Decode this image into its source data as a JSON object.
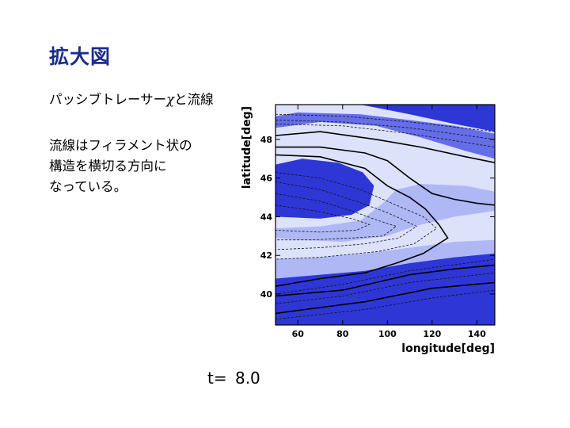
{
  "slide": {
    "title": "拡大図",
    "text_line1_prefix": "パッシブトレーサー",
    "text_line1_symbol": "χ",
    "text_line1_suffix": "と流線",
    "paragraph": [
      "流線はフィラメント状の",
      "構造を横切る方向に",
      "なっている。"
    ],
    "time_label": "t=",
    "time_value": "8.0"
  },
  "colors": {
    "title": "#1a2c8c",
    "band_dark": "#1e28d2",
    "band_mid": "#5a64e6",
    "band_light": "#aab4f4",
    "band_pale": "#dde2fb"
  },
  "chart_data": {
    "type": "contour",
    "title": "",
    "xlabel": "longitude[deg]",
    "ylabel": "latitude[deg]",
    "xlim": [
      50,
      148
    ],
    "ylim": [
      38.4,
      49.8
    ],
    "xticks": [
      60,
      80,
      100,
      120,
      140
    ],
    "yticks": [
      40,
      42,
      44,
      46,
      48
    ],
    "tracer_bands": [
      {
        "name": "top-dark",
        "level": "dark",
        "points": [
          [
            88,
            49.8
          ],
          [
            110,
            49.3
          ],
          [
            130,
            48.8
          ],
          [
            148,
            48.4
          ],
          [
            148,
            49.8
          ]
        ]
      },
      {
        "name": "upper-band",
        "level": "mid",
        "points": [
          [
            50,
            48.6
          ],
          [
            70,
            48.9
          ],
          [
            95,
            48.7
          ],
          [
            115,
            48.1
          ],
          [
            135,
            47.4
          ],
          [
            148,
            47.0
          ],
          [
            148,
            48.3
          ],
          [
            130,
            48.7
          ],
          [
            110,
            49.0
          ],
          [
            88,
            49.3
          ],
          [
            60,
            49.4
          ],
          [
            50,
            49.2
          ]
        ]
      },
      {
        "name": "filament",
        "level": "dark",
        "points": [
          [
            50,
            44.0
          ],
          [
            50,
            46.7
          ],
          [
            62,
            47.0
          ],
          [
            78,
            46.8
          ],
          [
            89,
            46.3
          ],
          [
            94,
            45.6
          ],
          [
            92,
            44.6
          ],
          [
            84,
            44.1
          ],
          [
            70,
            43.9
          ]
        ]
      },
      {
        "name": "filament-halo",
        "level": "light",
        "points": [
          [
            50,
            43.4
          ],
          [
            70,
            43.5
          ],
          [
            88,
            43.8
          ],
          [
            98,
            44.7
          ],
          [
            104,
            45.4
          ],
          [
            115,
            45.7
          ],
          [
            135,
            45.6
          ],
          [
            148,
            45.3
          ],
          [
            148,
            44.3
          ],
          [
            130,
            44.0
          ],
          [
            112,
            43.5
          ],
          [
            100,
            43.0
          ],
          [
            80,
            42.7
          ],
          [
            60,
            42.8
          ],
          [
            50,
            42.9
          ]
        ]
      },
      {
        "name": "lower-band",
        "level": "dark",
        "points": [
          [
            50,
            38.4
          ],
          [
            50,
            40.8
          ],
          [
            70,
            41.0
          ],
          [
            90,
            41.2
          ],
          [
            110,
            41.6
          ],
          [
            130,
            41.9
          ],
          [
            148,
            42.1
          ],
          [
            148,
            38.4
          ]
        ]
      },
      {
        "name": "lower-halo",
        "level": "light",
        "points": [
          [
            50,
            40.8
          ],
          [
            70,
            41.0
          ],
          [
            90,
            41.2
          ],
          [
            110,
            41.6
          ],
          [
            130,
            41.9
          ],
          [
            148,
            42.1
          ],
          [
            148,
            42.8
          ],
          [
            130,
            42.7
          ],
          [
            110,
            42.4
          ],
          [
            90,
            42.1
          ],
          [
            70,
            41.9
          ],
          [
            50,
            41.8
          ]
        ]
      }
    ],
    "streamlines_solid": [
      [
        [
          50,
          47.6
        ],
        [
          70,
          47.6
        ],
        [
          90,
          47.3
        ],
        [
          100,
          46.9
        ],
        [
          110,
          46.0
        ],
        [
          120,
          45.2
        ],
        [
          130,
          44.9
        ],
        [
          140,
          44.7
        ],
        [
          148,
          44.6
        ]
      ],
      [
        [
          50,
          47.2
        ],
        [
          70,
          47.1
        ],
        [
          90,
          46.5
        ],
        [
          100,
          45.6
        ],
        [
          110,
          45.0
        ],
        [
          117,
          44.4
        ],
        [
          123,
          43.6
        ],
        [
          127,
          42.9
        ],
        [
          116,
          42.1
        ],
        [
          104,
          41.6
        ],
        [
          90,
          41.1
        ],
        [
          70,
          40.8
        ],
        [
          50,
          40.4
        ]
      ],
      [
        [
          50,
          39.9
        ],
        [
          80,
          40.2
        ],
        [
          110,
          41.0
        ],
        [
          130,
          41.3
        ],
        [
          148,
          41.5
        ]
      ],
      [
        [
          50,
          48.2
        ],
        [
          70,
          48.4
        ],
        [
          95,
          48.0
        ],
        [
          115,
          47.6
        ],
        [
          135,
          47.1
        ],
        [
          148,
          46.8
        ]
      ],
      [
        [
          50,
          39.0
        ],
        [
          90,
          39.6
        ],
        [
          120,
          40.3
        ],
        [
          148,
          40.6
        ]
      ]
    ],
    "streamlines_dashed": [
      [
        [
          50,
          49.3
        ],
        [
          80,
          49.2
        ],
        [
          110,
          48.9
        ],
        [
          148,
          48.4
        ]
      ],
      [
        [
          50,
          49.0
        ],
        [
          80,
          48.9
        ],
        [
          110,
          48.6
        ],
        [
          148,
          48.0
        ]
      ],
      [
        [
          50,
          48.8
        ],
        [
          80,
          48.7
        ],
        [
          110,
          48.3
        ],
        [
          148,
          47.6
        ]
      ],
      [
        [
          50,
          46.3
        ],
        [
          70,
          46.0
        ],
        [
          88,
          45.4
        ],
        [
          100,
          44.8
        ],
        [
          108,
          44.4
        ],
        [
          116,
          44.0
        ],
        [
          122,
          43.4
        ],
        [
          112,
          42.6
        ],
        [
          96,
          42.2
        ],
        [
          70,
          41.9
        ],
        [
          50,
          41.8
        ]
      ],
      [
        [
          50,
          45.8
        ],
        [
          70,
          45.4
        ],
        [
          86,
          44.8
        ],
        [
          98,
          44.3
        ],
        [
          106,
          43.9
        ],
        [
          113,
          43.5
        ],
        [
          105,
          42.9
        ],
        [
          90,
          42.6
        ],
        [
          70,
          42.4
        ],
        [
          50,
          42.3
        ]
      ],
      [
        [
          50,
          45.2
        ],
        [
          70,
          44.8
        ],
        [
          84,
          44.3
        ],
        [
          96,
          43.8
        ],
        [
          104,
          43.5
        ],
        [
          98,
          43.0
        ],
        [
          84,
          42.9
        ],
        [
          66,
          42.8
        ],
        [
          50,
          42.8
        ]
      ],
      [
        [
          50,
          44.6
        ],
        [
          68,
          44.3
        ],
        [
          84,
          43.9
        ],
        [
          92,
          43.6
        ],
        [
          86,
          43.3
        ],
        [
          70,
          43.2
        ],
        [
          50,
          43.3
        ]
      ],
      [
        [
          50,
          40.0
        ],
        [
          80,
          40.5
        ],
        [
          110,
          41.2
        ],
        [
          148,
          41.8
        ]
      ],
      [
        [
          50,
          39.5
        ],
        [
          80,
          39.9
        ],
        [
          110,
          40.6
        ],
        [
          148,
          41.1
        ]
      ],
      [
        [
          50,
          38.7
        ],
        [
          90,
          39.2
        ],
        [
          120,
          39.8
        ],
        [
          148,
          40.2
        ]
      ]
    ]
  }
}
